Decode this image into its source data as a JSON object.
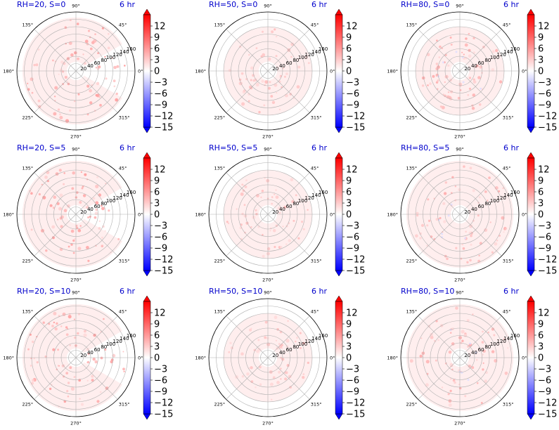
{
  "chart_data": {
    "type": "polar-heatmap-grid",
    "colormap": "bwr",
    "clim": [
      -15,
      15
    ],
    "colorbar_ticks": [
      "12",
      "9",
      "6",
      "3",
      "0",
      "−3",
      "−6",
      "−9",
      "−12",
      "−15"
    ],
    "angle_ticks": [
      "0°",
      "45°",
      "90°",
      "135°",
      "180°",
      "225°",
      "270°",
      "315°"
    ],
    "radial_ticks": [
      "20",
      "40",
      "60",
      "80",
      "100",
      "120",
      "140",
      "160"
    ],
    "rlim": [
      0,
      160
    ],
    "grid": true,
    "panels": [
      {
        "title": "RH=20, S=0",
        "time": "6 hr",
        "outer_extent": 145,
        "extent_angles": [
          30,
          330
        ],
        "spot_level": 4
      },
      {
        "title": "RH=50, S=0",
        "time": "6 hr",
        "outer_extent": 120,
        "extent_angles": [
          0,
          360
        ],
        "spot_level": 2
      },
      {
        "title": "RH=80, S=0",
        "time": "6 hr",
        "outer_extent": 120,
        "extent_angles": [
          0,
          360
        ],
        "spot_level": 3
      },
      {
        "title": "RH=20, S=5",
        "time": "6 hr",
        "outer_extent": 145,
        "extent_angles": [
          30,
          330
        ],
        "spot_level": 4
      },
      {
        "title": "RH=50, S=5",
        "time": "6 hr",
        "outer_extent": 120,
        "extent_angles": [
          0,
          360
        ],
        "spot_level": 2
      },
      {
        "title": "RH=80, S=5",
        "time": "6 hr",
        "outer_extent": 145,
        "extent_angles": [
          0,
          360
        ],
        "spot_level": 3
      },
      {
        "title": "RH=20, S=10",
        "time": "6 hr",
        "outer_extent": 145,
        "extent_angles": [
          30,
          330
        ],
        "spot_level": 4
      },
      {
        "title": "RH=50, S=10",
        "time": "6 hr",
        "outer_extent": 120,
        "extent_angles": [
          0,
          360
        ],
        "spot_level": 2
      },
      {
        "title": "RH=80, S=10",
        "time": "6 hr",
        "outer_extent": 145,
        "extent_angles": [
          0,
          360
        ],
        "spot_level": 3
      }
    ]
  }
}
